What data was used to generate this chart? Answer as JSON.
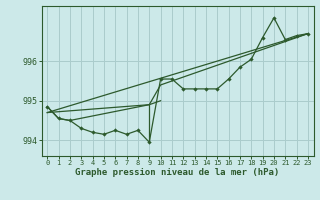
{
  "xlabel": "Graphe pression niveau de la mer (hPa)",
  "background_color": "#cce9e9",
  "grid_color": "#aacccc",
  "line_color": "#2d5a2d",
  "ylim": [
    993.6,
    997.4
  ],
  "xlim": [
    -0.5,
    23.5
  ],
  "yticks": [
    994,
    995,
    996
  ],
  "xticks": [
    0,
    1,
    2,
    3,
    4,
    5,
    6,
    7,
    8,
    9,
    10,
    11,
    12,
    13,
    14,
    15,
    16,
    17,
    18,
    19,
    20,
    21,
    22,
    23
  ],
  "main_data": [
    994.85,
    994.55,
    994.5,
    994.3,
    994.2,
    994.15,
    994.25,
    994.15,
    994.25,
    993.95,
    995.55,
    995.55,
    995.3,
    995.3,
    995.3,
    995.3,
    995.55,
    995.85,
    996.05,
    996.6,
    997.1,
    996.55,
    996.65,
    996.7
  ],
  "trend_straight": {
    "x": [
      0,
      23
    ],
    "y": [
      994.7,
      996.7
    ]
  },
  "trend_bent": {
    "x": [
      0,
      9,
      10,
      23
    ],
    "y": [
      994.7,
      994.9,
      995.4,
      996.7
    ]
  },
  "secondary_line": {
    "x": [
      0,
      1,
      2,
      9,
      10
    ],
    "y": [
      994.85,
      994.55,
      994.5,
      994.9,
      995.0
    ]
  },
  "drop_line": {
    "x": [
      9,
      9
    ],
    "y": [
      994.9,
      994.0
    ]
  }
}
